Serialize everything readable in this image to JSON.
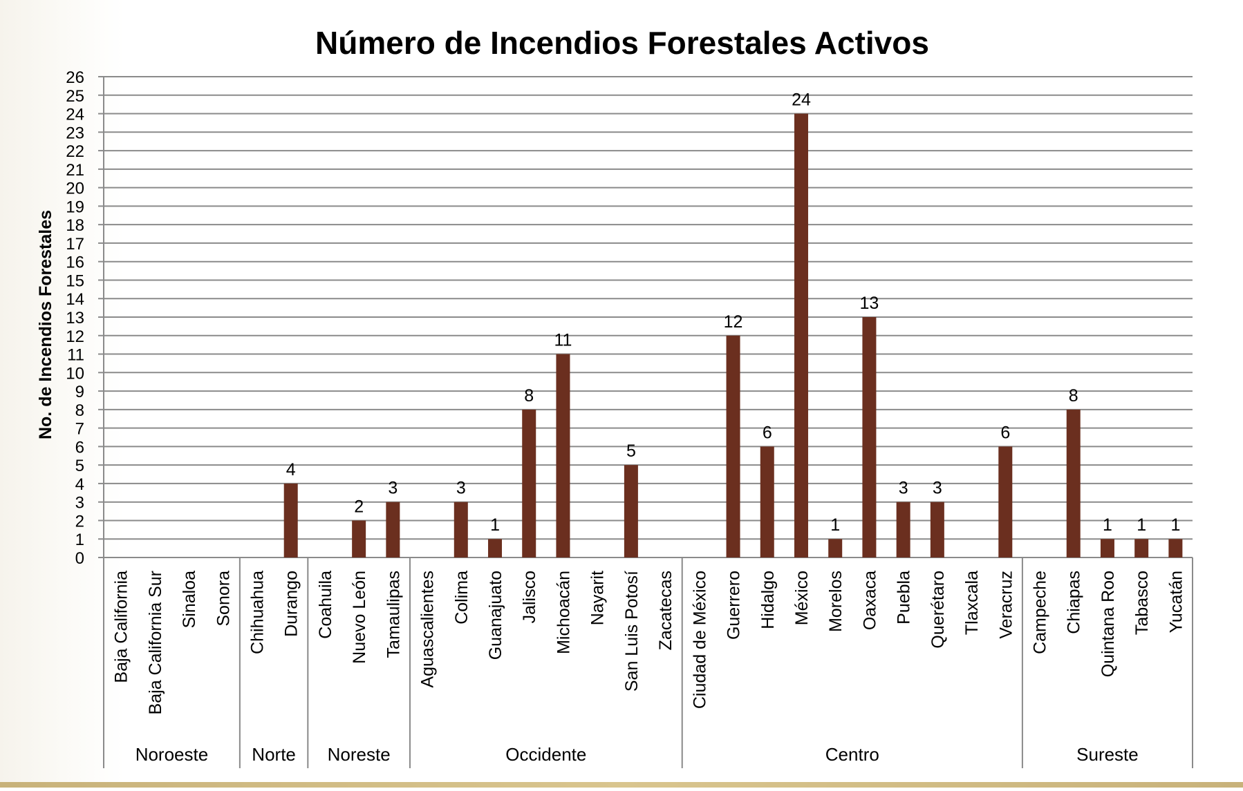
{
  "chart_data": {
    "type": "bar",
    "title": "Número de Incendios Forestales Activos",
    "ylabel": "No. de Incendios Forestales",
    "ylim": [
      0,
      26
    ],
    "yticks": [
      0,
      1,
      2,
      3,
      4,
      5,
      6,
      7,
      8,
      9,
      10,
      11,
      12,
      13,
      14,
      15,
      16,
      17,
      18,
      19,
      20,
      21,
      22,
      23,
      24,
      25,
      26
    ],
    "grid": true,
    "bar_color": "#6b2f1f",
    "categories": [
      "Baja California",
      "Baja California Sur",
      "Sinaloa",
      "Sonora",
      "Chihuahua",
      "Durango",
      "Coahuila",
      "Nuevo León",
      "Tamaulipas",
      "Aguascalientes",
      "Colima",
      "Guanajuato",
      "Jalisco",
      "Michoacán",
      "Nayarit",
      "San Luis Potosí",
      "Zacatecas",
      "Ciudad de México",
      "Guerrero",
      "Hidalgo",
      "México",
      "Morelos",
      "Oaxaca",
      "Puebla",
      "Querétaro",
      "Tlaxcala",
      "Veracruz",
      "Campeche",
      "Chiapas",
      "Quintana Roo",
      "Tabasco",
      "Yucatán"
    ],
    "values": [
      null,
      null,
      null,
      null,
      null,
      4,
      null,
      2,
      3,
      null,
      3,
      1,
      8,
      11,
      null,
      5,
      null,
      null,
      12,
      6,
      24,
      1,
      13,
      3,
      3,
      null,
      6,
      null,
      8,
      1,
      1,
      1
    ],
    "groups": [
      {
        "name": "Noroeste",
        "count": 4
      },
      {
        "name": "Norte",
        "count": 2
      },
      {
        "name": "Noreste",
        "count": 3
      },
      {
        "name": "Occidente",
        "count": 8
      },
      {
        "name": "Centro",
        "count": 10
      },
      {
        "name": "Sureste",
        "count": 5
      }
    ]
  }
}
